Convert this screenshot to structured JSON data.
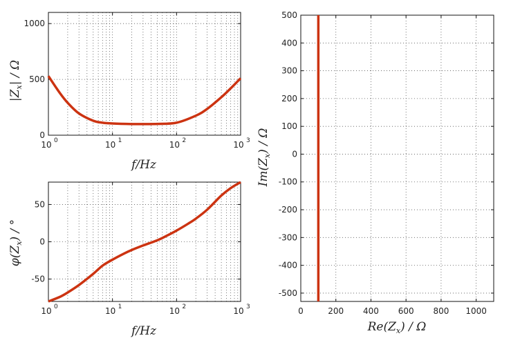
{
  "chart_data": [
    {
      "type": "line",
      "xscale": "log",
      "xlim": [
        1,
        1000
      ],
      "ylim": [
        0,
        1100
      ],
      "x_ticks": [
        1,
        10,
        100,
        1000
      ],
      "x_tick_labels": [
        {
          "base": "10",
          "exp": "0"
        },
        {
          "base": "10",
          "exp": "1"
        },
        {
          "base": "10",
          "exp": "2"
        },
        {
          "base": "10",
          "exp": "3"
        }
      ],
      "y_ticks": [
        0,
        500,
        1000
      ],
      "y_tick_labels": [
        "0",
        "500",
        "1000"
      ],
      "xlabel": "f / Hz",
      "ylabel": "|Zx| / Ω",
      "grid": true,
      "series": [
        {
          "color": "#cc3311",
          "x": [
            1,
            1.5,
            2,
            3,
            5,
            7,
            10,
            20,
            30,
            50,
            100,
            200,
            300,
            500,
            700,
            1000
          ],
          "y": [
            530,
            380,
            290,
            195,
            130,
            112,
            105,
            100,
            100,
            101,
            112,
            175,
            235,
            340,
            420,
            510
          ]
        }
      ]
    },
    {
      "type": "line",
      "xscale": "log",
      "xlim": [
        1,
        1000
      ],
      "ylim": [
        -80,
        80
      ],
      "x_ticks": [
        1,
        10,
        100,
        1000
      ],
      "x_tick_labels": [
        {
          "base": "10",
          "exp": "0"
        },
        {
          "base": "10",
          "exp": "1"
        },
        {
          "base": "10",
          "exp": "2"
        },
        {
          "base": "10",
          "exp": "3"
        }
      ],
      "y_ticks": [
        -50,
        0,
        50
      ],
      "y_tick_labels": [
        "-50",
        "0",
        "50"
      ],
      "xlabel": "f / Hz",
      "ylabel": "φ(Zx) / °",
      "grid": true,
      "series": [
        {
          "color": "#cc3311",
          "x": [
            1,
            1.5,
            2,
            3,
            5,
            7,
            10,
            15,
            20,
            30,
            50,
            70,
            100,
            150,
            200,
            300,
            500,
            700,
            1000
          ],
          "y": [
            -80,
            -74,
            -68,
            -58,
            -43,
            -32,
            -24,
            -16,
            -11,
            -5,
            2,
            8,
            15,
            24,
            31,
            43,
            62,
            72,
            80
          ]
        }
      ]
    },
    {
      "type": "line",
      "xlim": [
        0,
        1100
      ],
      "ylim": [
        -530,
        500
      ],
      "x_ticks": [
        0,
        200,
        400,
        600,
        800,
        1000
      ],
      "x_tick_labels": [
        "0",
        "200",
        "400",
        "600",
        "800",
        "1000"
      ],
      "y_ticks": [
        -500,
        -400,
        -300,
        -200,
        -100,
        0,
        100,
        200,
        300,
        400,
        500
      ],
      "y_tick_labels": [
        "-500",
        "-400",
        "-300",
        "-200",
        "-100",
        "0",
        "100",
        "200",
        "300",
        "400",
        "500"
      ],
      "xlabel": "Re(Zx) / Ω",
      "ylabel": "Im(Zx) / Ω",
      "grid": true,
      "series": [
        {
          "color": "#cc3311",
          "x": [
            100,
            100
          ],
          "y": [
            -530,
            500
          ]
        }
      ]
    }
  ]
}
